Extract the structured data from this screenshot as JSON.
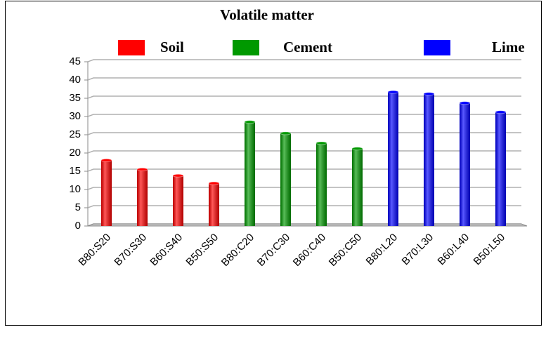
{
  "chart_data": {
    "type": "bar",
    "title": "Volatile matter",
    "categories": [
      "B80:S20",
      "B70:S30",
      "B60:S40",
      "B50:S50",
      "B80:C20",
      "B70:C30",
      "B60:C40",
      "B50:C50",
      "B80:L20",
      "B70:L30",
      "B60:L40",
      "B50:L50"
    ],
    "series": [
      {
        "name": "Soil",
        "color": "#ff0000",
        "values": [
          18,
          15.5,
          13.8,
          11.7,
          null,
          null,
          null,
          null,
          null,
          null,
          null,
          null
        ]
      },
      {
        "name": "Cement",
        "color": "#009900",
        "values": [
          null,
          null,
          null,
          null,
          28.5,
          25.4,
          22.7,
          21.2,
          null,
          null,
          null,
          null
        ]
      },
      {
        "name": "Lime",
        "color": "#0000ff",
        "values": [
          null,
          null,
          null,
          null,
          null,
          null,
          null,
          null,
          36.7,
          36.2,
          33.7,
          31.2
        ]
      }
    ],
    "ylim": [
      0,
      45
    ],
    "yticks": [
      0,
      5,
      10,
      15,
      20,
      25,
      30,
      35,
      40,
      45
    ],
    "grid": true,
    "legend": "top"
  }
}
